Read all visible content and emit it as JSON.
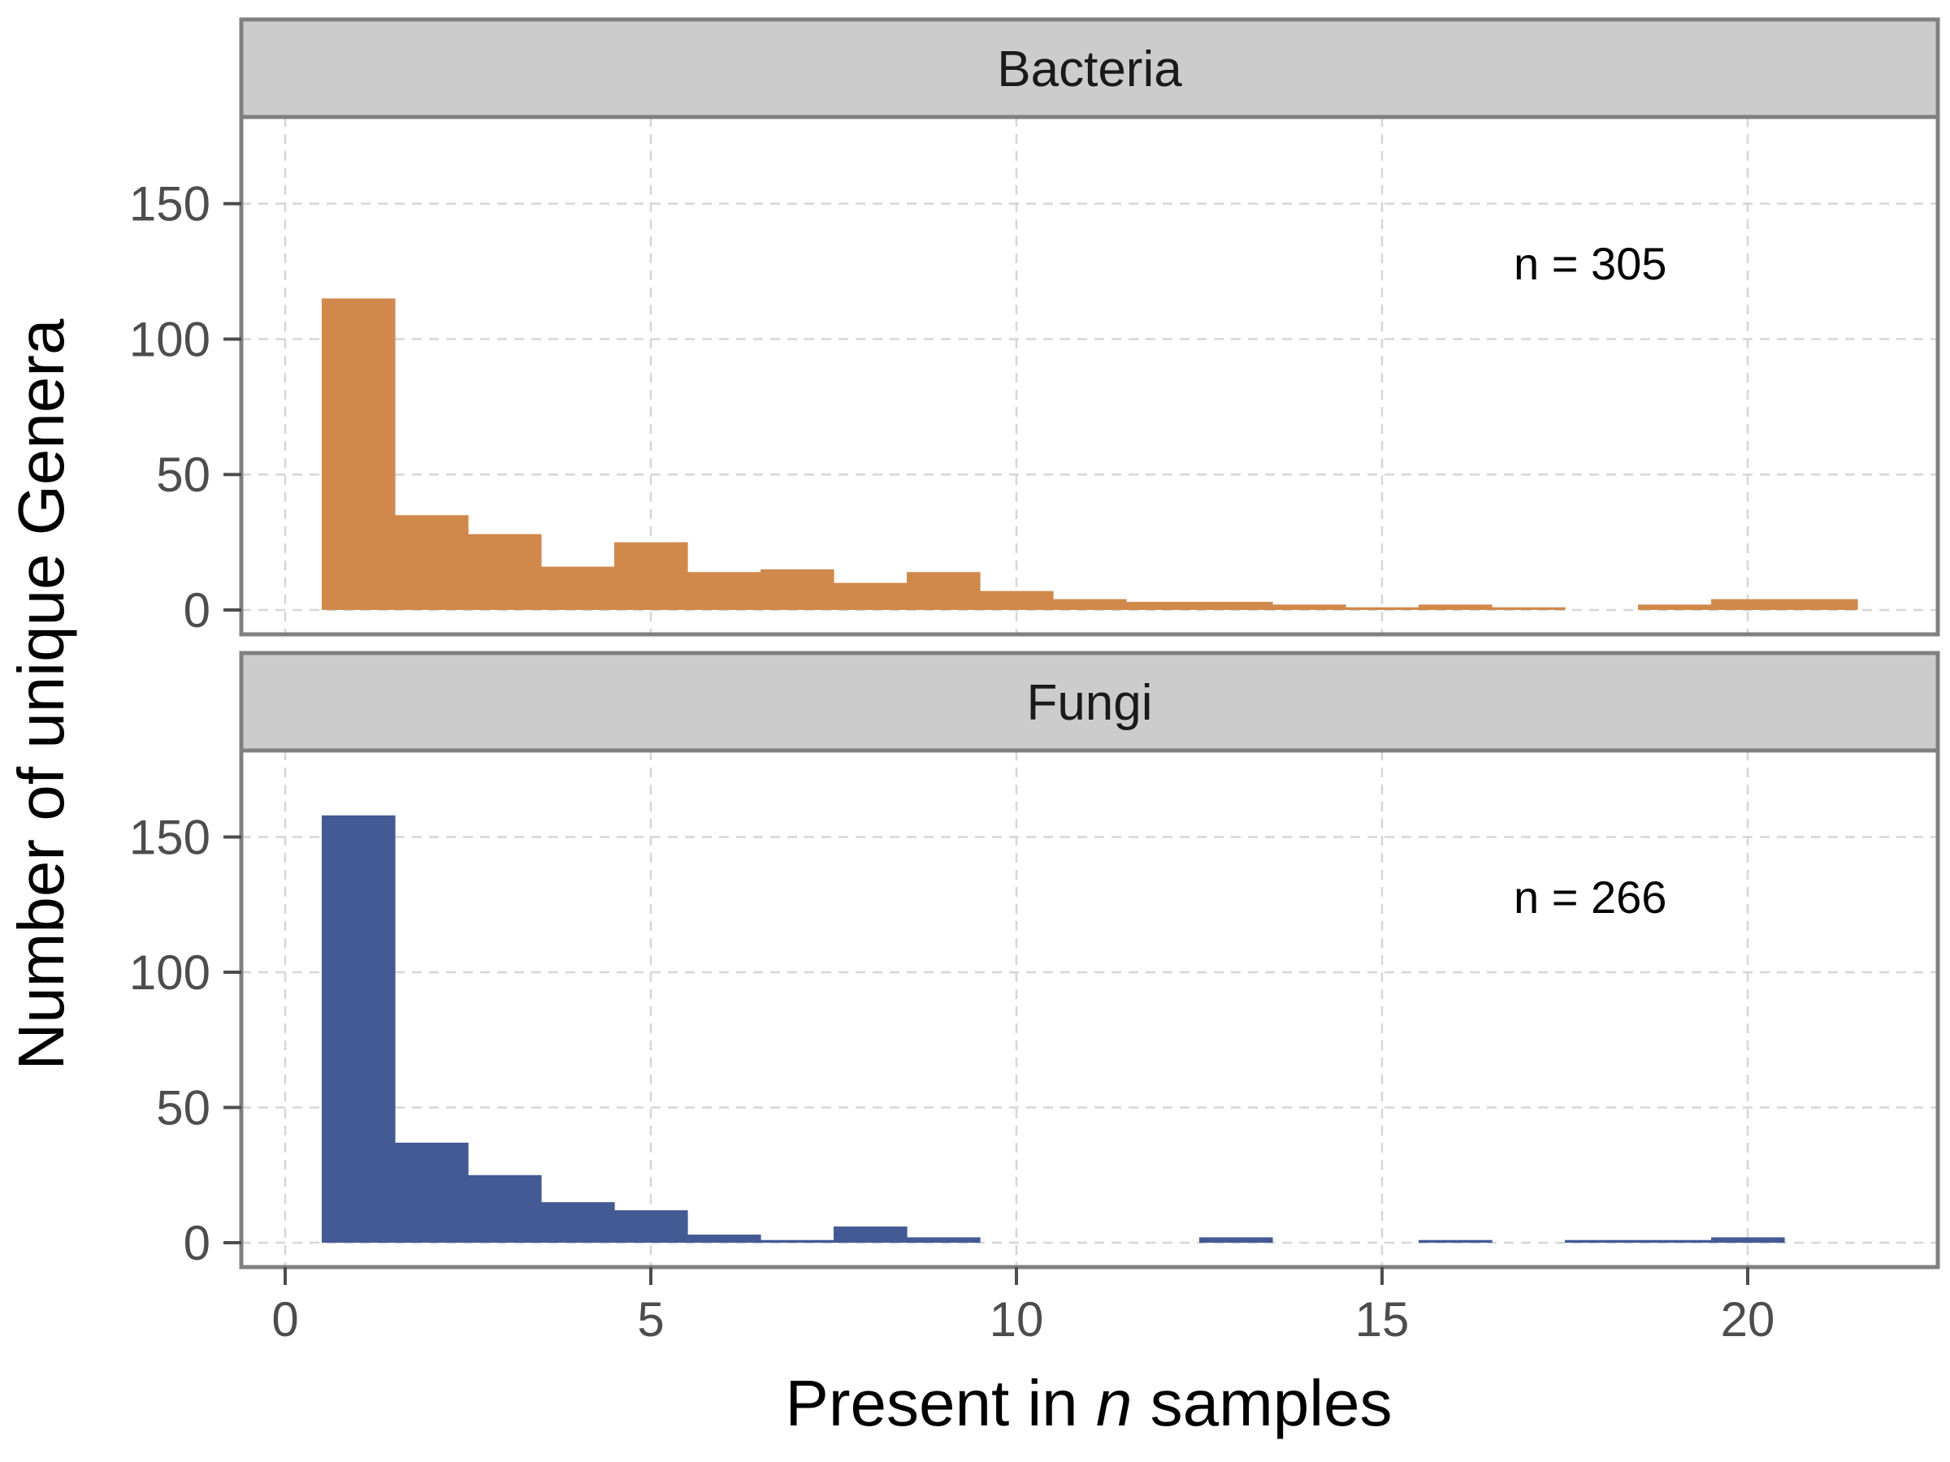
{
  "chart_data": {
    "type": "bar",
    "subtype": "faceted-histogram",
    "xlabel": {
      "prefix": "Present in ",
      "italic": "n",
      "suffix": " samples"
    },
    "ylabel": "Number of unique Genera",
    "xlim": [
      -0.6,
      22.6
    ],
    "ylim": [
      -9,
      182
    ],
    "x_ticks": [
      0,
      5,
      10,
      15,
      20
    ],
    "x_tick_labels": [
      "0",
      "5",
      "10",
      "15",
      "20"
    ],
    "y_ticks": [
      0,
      50,
      100,
      150
    ],
    "y_tick_labels": [
      "0",
      "50",
      "100",
      "150"
    ],
    "grid": true,
    "bin_width": 1,
    "x": [
      1,
      2,
      3,
      4,
      5,
      6,
      7,
      8,
      9,
      10,
      11,
      12,
      13,
      14,
      15,
      16,
      17,
      18,
      19,
      20,
      21
    ],
    "facets": [
      {
        "name": "Bacteria",
        "color": "#d1894b",
        "annotation": "n = 305",
        "values": [
          115,
          35,
          28,
          16,
          25,
          14,
          15,
          10,
          14,
          7,
          4,
          3,
          3,
          2,
          1,
          2,
          1,
          0,
          2,
          4,
          4
        ]
      },
      {
        "name": "Fungi",
        "color": "#435a95",
        "annotation": "n = 266",
        "values": [
          158,
          37,
          25,
          15,
          12,
          3,
          1,
          6,
          2,
          0,
          0,
          0,
          2,
          0,
          0,
          1,
          0,
          1,
          1,
          2,
          0
        ]
      }
    ]
  }
}
